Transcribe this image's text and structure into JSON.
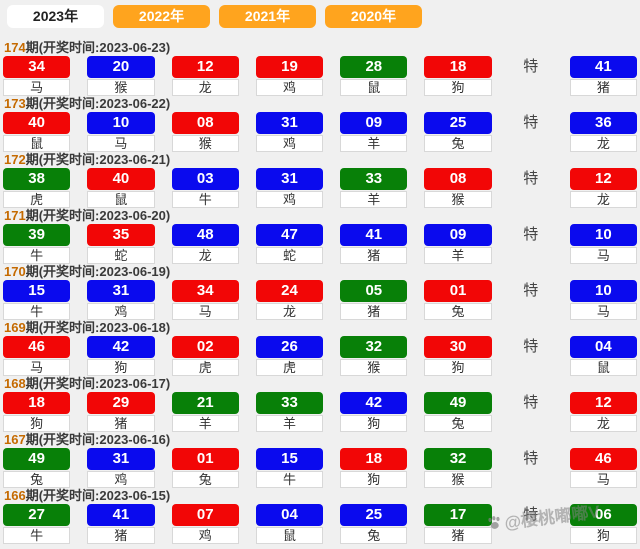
{
  "tabs": [
    {
      "label": "2023年",
      "active": true
    },
    {
      "label": "2022年",
      "active": false
    },
    {
      "label": "2021年",
      "active": false
    },
    {
      "label": "2020年",
      "active": false
    }
  ],
  "labels": {
    "header_mid": "期(开奖时间:",
    "header_end": ")",
    "special": "特"
  },
  "colors": {
    "red": "#f20606",
    "blue": "#0a0aee",
    "green": "#088008",
    "tab_orange": "#ffa41e"
  },
  "watermark": {
    "icon": "paw-icon",
    "text": "@樱桃嘟嘟V"
  },
  "periods": [
    {
      "period": "174",
      "date": "2023-06-23",
      "balls": [
        {
          "num": "34",
          "color": "red",
          "zodiac": "马"
        },
        {
          "num": "20",
          "color": "blue",
          "zodiac": "猴"
        },
        {
          "num": "12",
          "color": "red",
          "zodiac": "龙"
        },
        {
          "num": "19",
          "color": "red",
          "zodiac": "鸡"
        },
        {
          "num": "28",
          "color": "green",
          "zodiac": "鼠"
        },
        {
          "num": "18",
          "color": "red",
          "zodiac": "狗"
        }
      ],
      "special": {
        "num": "41",
        "color": "blue",
        "zodiac": "猪"
      }
    },
    {
      "period": "173",
      "date": "2023-06-22",
      "balls": [
        {
          "num": "40",
          "color": "red",
          "zodiac": "鼠"
        },
        {
          "num": "10",
          "color": "blue",
          "zodiac": "马"
        },
        {
          "num": "08",
          "color": "red",
          "zodiac": "猴"
        },
        {
          "num": "31",
          "color": "blue",
          "zodiac": "鸡"
        },
        {
          "num": "09",
          "color": "blue",
          "zodiac": "羊"
        },
        {
          "num": "25",
          "color": "blue",
          "zodiac": "兔"
        }
      ],
      "special": {
        "num": "36",
        "color": "blue",
        "zodiac": "龙"
      }
    },
    {
      "period": "172",
      "date": "2023-06-21",
      "balls": [
        {
          "num": "38",
          "color": "green",
          "zodiac": "虎"
        },
        {
          "num": "40",
          "color": "red",
          "zodiac": "鼠"
        },
        {
          "num": "03",
          "color": "blue",
          "zodiac": "牛"
        },
        {
          "num": "31",
          "color": "blue",
          "zodiac": "鸡"
        },
        {
          "num": "33",
          "color": "green",
          "zodiac": "羊"
        },
        {
          "num": "08",
          "color": "red",
          "zodiac": "猴"
        }
      ],
      "special": {
        "num": "12",
        "color": "red",
        "zodiac": "龙"
      }
    },
    {
      "period": "171",
      "date": "2023-06-20",
      "balls": [
        {
          "num": "39",
          "color": "green",
          "zodiac": "牛"
        },
        {
          "num": "35",
          "color": "red",
          "zodiac": "蛇"
        },
        {
          "num": "48",
          "color": "blue",
          "zodiac": "龙"
        },
        {
          "num": "47",
          "color": "blue",
          "zodiac": "蛇"
        },
        {
          "num": "41",
          "color": "blue",
          "zodiac": "猪"
        },
        {
          "num": "09",
          "color": "blue",
          "zodiac": "羊"
        }
      ],
      "special": {
        "num": "10",
        "color": "blue",
        "zodiac": "马"
      }
    },
    {
      "period": "170",
      "date": "2023-06-19",
      "balls": [
        {
          "num": "15",
          "color": "blue",
          "zodiac": "牛"
        },
        {
          "num": "31",
          "color": "blue",
          "zodiac": "鸡"
        },
        {
          "num": "34",
          "color": "red",
          "zodiac": "马"
        },
        {
          "num": "24",
          "color": "red",
          "zodiac": "龙"
        },
        {
          "num": "05",
          "color": "green",
          "zodiac": "猪"
        },
        {
          "num": "01",
          "color": "red",
          "zodiac": "兔"
        }
      ],
      "special": {
        "num": "10",
        "color": "blue",
        "zodiac": "马"
      }
    },
    {
      "period": "169",
      "date": "2023-06-18",
      "balls": [
        {
          "num": "46",
          "color": "red",
          "zodiac": "马"
        },
        {
          "num": "42",
          "color": "blue",
          "zodiac": "狗"
        },
        {
          "num": "02",
          "color": "red",
          "zodiac": "虎"
        },
        {
          "num": "26",
          "color": "blue",
          "zodiac": "虎"
        },
        {
          "num": "32",
          "color": "green",
          "zodiac": "猴"
        },
        {
          "num": "30",
          "color": "red",
          "zodiac": "狗"
        }
      ],
      "special": {
        "num": "04",
        "color": "blue",
        "zodiac": "鼠"
      }
    },
    {
      "period": "168",
      "date": "2023-06-17",
      "balls": [
        {
          "num": "18",
          "color": "red",
          "zodiac": "狗"
        },
        {
          "num": "29",
          "color": "red",
          "zodiac": "猪"
        },
        {
          "num": "21",
          "color": "green",
          "zodiac": "羊"
        },
        {
          "num": "33",
          "color": "green",
          "zodiac": "羊"
        },
        {
          "num": "42",
          "color": "blue",
          "zodiac": "狗"
        },
        {
          "num": "49",
          "color": "green",
          "zodiac": "兔"
        }
      ],
      "special": {
        "num": "12",
        "color": "red",
        "zodiac": "龙"
      }
    },
    {
      "period": "167",
      "date": "2023-06-16",
      "balls": [
        {
          "num": "49",
          "color": "green",
          "zodiac": "兔"
        },
        {
          "num": "31",
          "color": "blue",
          "zodiac": "鸡"
        },
        {
          "num": "01",
          "color": "red",
          "zodiac": "兔"
        },
        {
          "num": "15",
          "color": "blue",
          "zodiac": "牛"
        },
        {
          "num": "18",
          "color": "red",
          "zodiac": "狗"
        },
        {
          "num": "32",
          "color": "green",
          "zodiac": "猴"
        }
      ],
      "special": {
        "num": "46",
        "color": "red",
        "zodiac": "马"
      }
    },
    {
      "period": "166",
      "date": "2023-06-15",
      "balls": [
        {
          "num": "27",
          "color": "green",
          "zodiac": "牛"
        },
        {
          "num": "41",
          "color": "blue",
          "zodiac": "猪"
        },
        {
          "num": "07",
          "color": "red",
          "zodiac": "鸡"
        },
        {
          "num": "04",
          "color": "blue",
          "zodiac": "鼠"
        },
        {
          "num": "25",
          "color": "blue",
          "zodiac": "兔"
        },
        {
          "num": "17",
          "color": "green",
          "zodiac": "猪"
        }
      ],
      "special": {
        "num": "06",
        "color": "green",
        "zodiac": "狗"
      }
    }
  ]
}
